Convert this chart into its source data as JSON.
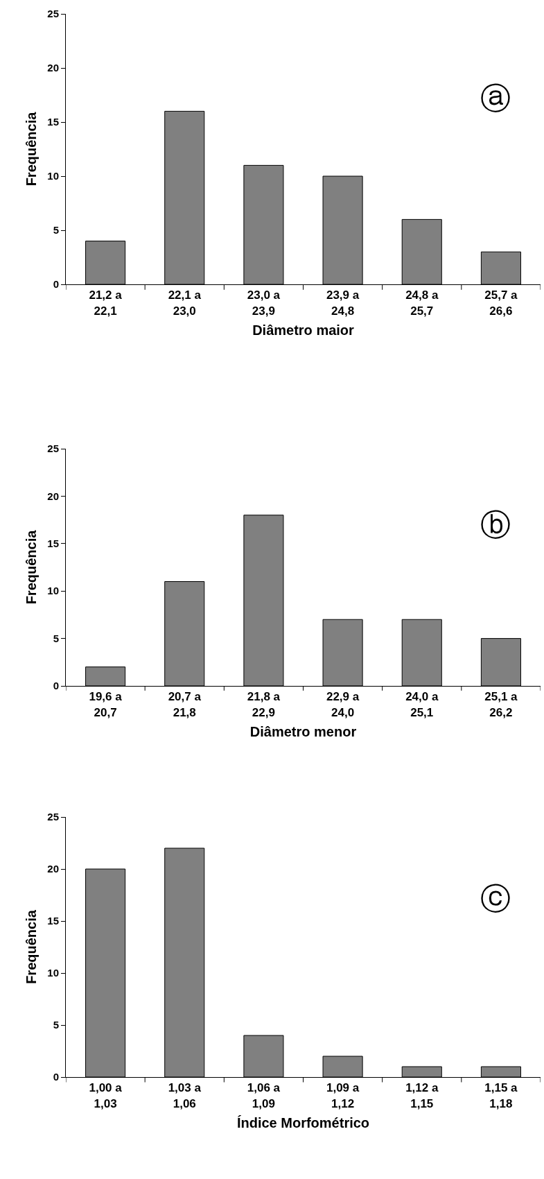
{
  "chart_data": [
    {
      "type": "bar",
      "categories": [
        "21,2 a\n22,1",
        "22,1 a\n23,0",
        "23,0 a\n23,9",
        "23,9 a\n24,8",
        "24,8 a\n25,7",
        "25,7 a\n26,6"
      ],
      "values": [
        4,
        16,
        11,
        10,
        6,
        3
      ],
      "color": "#808080",
      "xlabel": "Diâmetro maior",
      "ylabel": "Frequência",
      "ylim": [
        0,
        25
      ],
      "yticks": [
        0,
        5,
        10,
        15,
        20,
        25
      ],
      "annotations": [
        "ⓐ"
      ]
    },
    {
      "type": "bar",
      "categories": [
        "19,6 a\n20,7",
        "20,7 a\n21,8",
        "21,8 a\n22,9",
        "22,9 a\n24,0",
        "24,0 a\n25,1",
        "25,1 a\n26,2"
      ],
      "values": [
        2,
        11,
        18,
        7,
        7,
        5
      ],
      "color": "#808080",
      "xlabel": "Diâmetro menor",
      "ylabel": "Frequência",
      "ylim": [
        0,
        25
      ],
      "yticks": [
        0,
        5,
        10,
        15,
        20,
        25
      ],
      "annotations": [
        "ⓑ"
      ]
    },
    {
      "type": "bar",
      "categories": [
        "1,00 a\n1,03",
        "1,03 a\n1,06",
        "1,06 a\n1,09",
        "1,09 a\n1,12",
        "1,12 a\n1,15",
        "1,15 a\n1,18"
      ],
      "values": [
        20,
        22,
        4,
        2,
        1,
        1
      ],
      "color": "#808080",
      "xlabel": "Índice Morfométrico",
      "ylabel": "Frequência",
      "ylim": [
        0,
        25
      ],
      "yticks": [
        0,
        5,
        10,
        15,
        20,
        25
      ],
      "annotations": [
        "ⓒ"
      ]
    }
  ]
}
